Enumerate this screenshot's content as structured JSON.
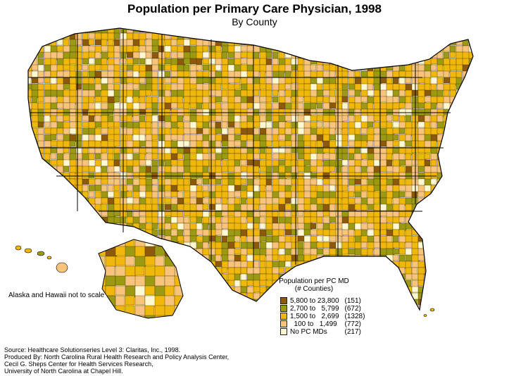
{
  "title": "Population per Primary Care Physician, 1998",
  "subtitle": "By County",
  "note": "Alaska and Hawaii not to scale",
  "legend": {
    "title_line1": "Population per PC MD",
    "title_line2": "(# Counties)",
    "items": [
      {
        "label": "5,800 to 23,800",
        "count": "(151)",
        "color": "#8c5a0a"
      },
      {
        "label": "2,700 to   5,799",
        "count": "(672)",
        "color": "#9c9a12"
      },
      {
        "label": "1,500 to   2,699",
        "count": "(1328)",
        "color": "#f0b80c"
      },
      {
        "label": "  100 to   1,499",
        "count": "(772)",
        "color": "#f8c47c"
      },
      {
        "label": "No PC MDs",
        "count": "(217)",
        "color": "#fff8d0"
      }
    ]
  },
  "footer": {
    "source": "Source:  Healthcare Solutionseries Level 3:  Claritas, Inc., 1998.",
    "produced_line1": "Produced By:  North Carolina Rural Health Research and Policy Analysis Center,",
    "produced_line2": "Cecil G. Sheps Center for Health Services Research,",
    "produced_line3": "University of North Carolina at Chapel Hill."
  }
}
